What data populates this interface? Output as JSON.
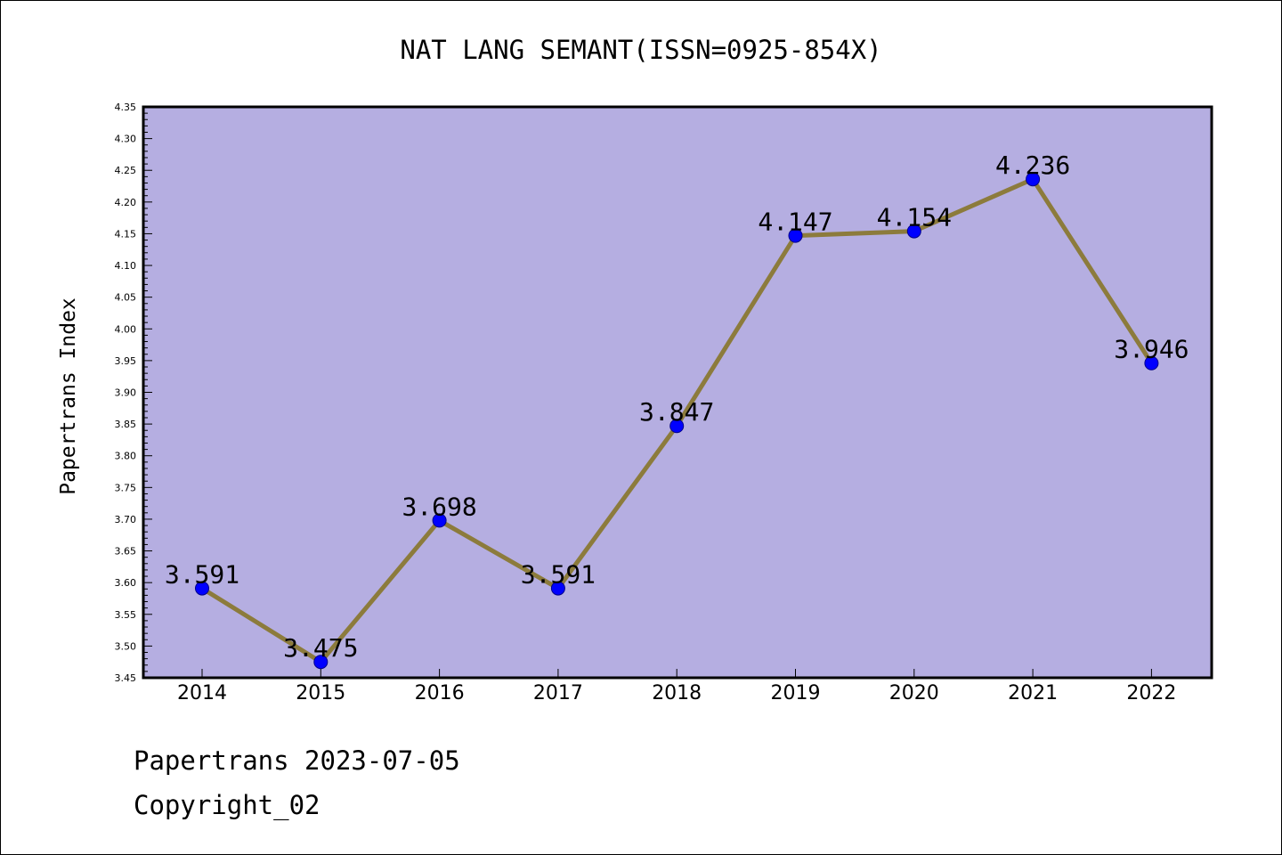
{
  "chart_data": {
    "type": "line",
    "title": "NAT LANG SEMANT(ISSN=0925-854X)",
    "xlabel": "",
    "ylabel": "Papertrans Index",
    "categories": [
      "2014",
      "2015",
      "2016",
      "2017",
      "2018",
      "2019",
      "2020",
      "2021",
      "2022"
    ],
    "series": [
      {
        "values": [
          3.591,
          3.475,
          3.698,
          3.591,
          3.847,
          4.147,
          4.154,
          4.236,
          3.946
        ],
        "labels": [
          "3.591",
          "3.475",
          "3.698",
          "3.591",
          "3.847",
          "4.147",
          "4.154",
          "4.236",
          "3.946"
        ]
      }
    ],
    "ylim": [
      3.45,
      4.35
    ],
    "yticks": [
      "3.45",
      "3.50",
      "3.55",
      "3.60",
      "3.65",
      "3.70",
      "3.75",
      "3.80",
      "3.85",
      "3.90",
      "3.95",
      "4.00",
      "4.05",
      "4.10",
      "4.15",
      "4.20",
      "4.25",
      "4.30",
      "4.35"
    ],
    "grid": false,
    "colors": {
      "plot_background": "#b5aee1",
      "line": "#8c7b3c",
      "marker": "#0000ff"
    }
  },
  "footer": {
    "line1": "Papertrans 2023-07-05",
    "line2": "Copyright_02"
  }
}
